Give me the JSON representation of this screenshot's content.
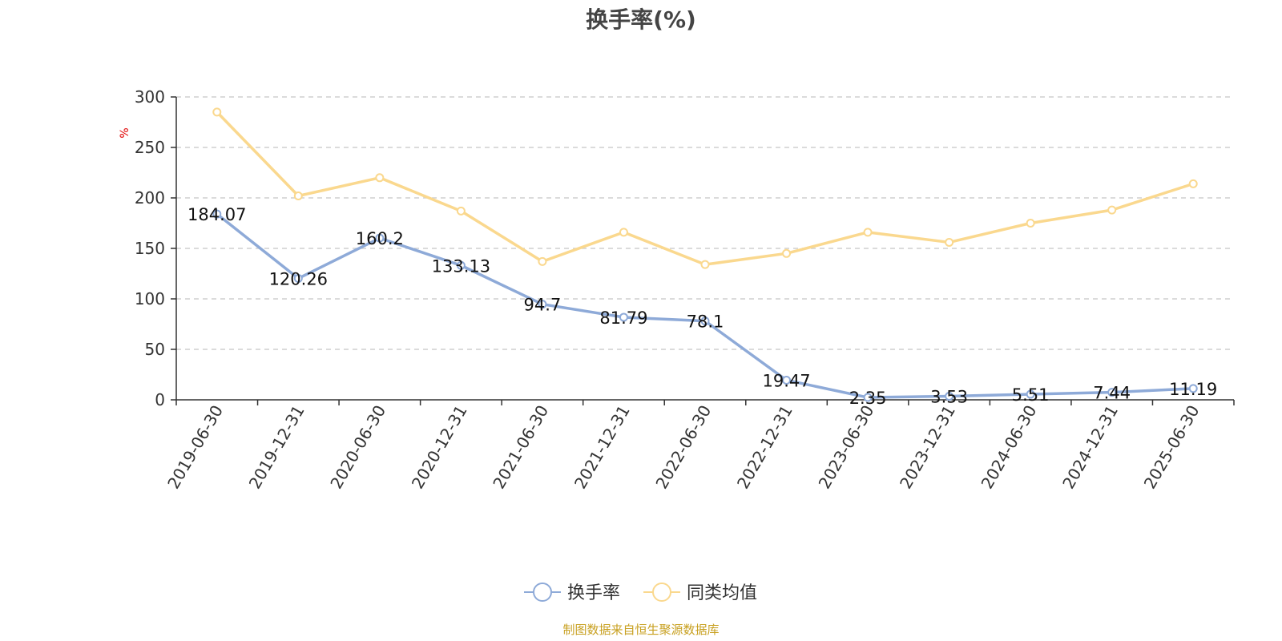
{
  "chart_data": {
    "type": "line",
    "title": "换手率(%)",
    "unit_label": "%",
    "x": [
      "2019-06-30",
      "2019-12-31",
      "2020-06-30",
      "2020-12-31",
      "2021-06-30",
      "2021-12-31",
      "2022-06-30",
      "2022-12-31",
      "2023-06-30",
      "2023-12-31",
      "2024-06-30",
      "2024-12-31",
      "2025-06-30"
    ],
    "series": [
      {
        "name": "换手率",
        "color": "#8eaad8",
        "values": [
          184.07,
          120.26,
          160.2,
          133.13,
          94.7,
          81.79,
          78.1,
          19.47,
          2.35,
          3.53,
          5.51,
          7.44,
          11.19
        ],
        "data_labels": [
          "184.07",
          "120.26",
          "160.2",
          "133.13",
          "94.7",
          "81.79",
          "78.1",
          "19.47",
          "2.35",
          "3.53",
          "5.51",
          "7.44",
          "11.19"
        ]
      },
      {
        "name": "同类均值",
        "color": "#fad88e",
        "values": [
          285,
          202,
          220,
          187,
          137,
          166,
          134,
          145,
          166,
          156,
          175,
          188,
          214
        ]
      }
    ],
    "ylim": [
      0,
      300
    ],
    "yticks": [
      "0",
      "50",
      "100",
      "150",
      "200",
      "250",
      "300"
    ],
    "grid": true,
    "legend_position": "bottom-center"
  },
  "source": "制图数据来自恒生聚源数据库"
}
